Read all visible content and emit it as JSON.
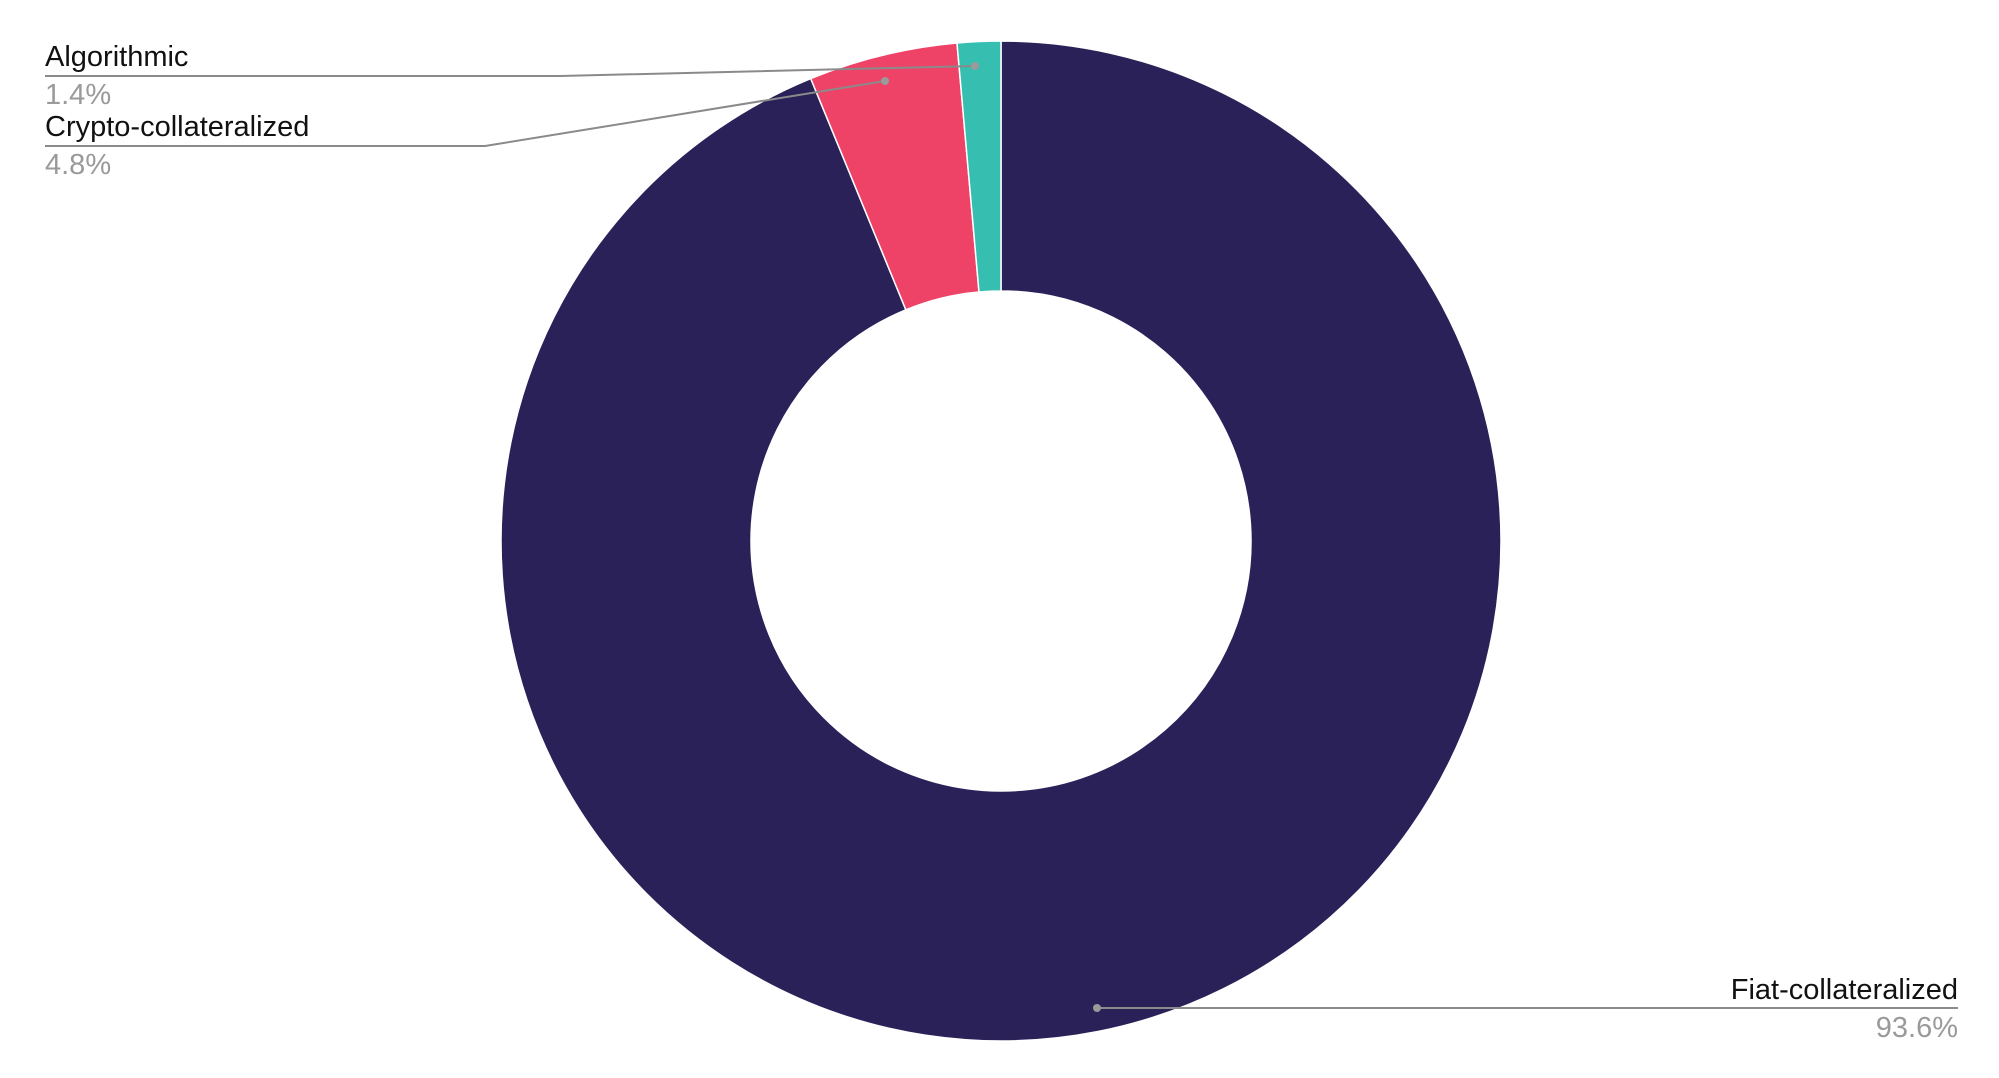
{
  "chart_data": {
    "type": "pie",
    "donut": true,
    "categories": [
      "Fiat-collateralized",
      "Crypto-collateralized",
      "Algorithmic"
    ],
    "values": [
      93.6,
      4.8,
      1.4
    ],
    "value_labels": [
      "93.6%",
      "4.8%",
      "1.4%"
    ],
    "colors": [
      "#2a2159",
      "#ee4267",
      "#36bfb1"
    ],
    "legend": "none"
  }
}
